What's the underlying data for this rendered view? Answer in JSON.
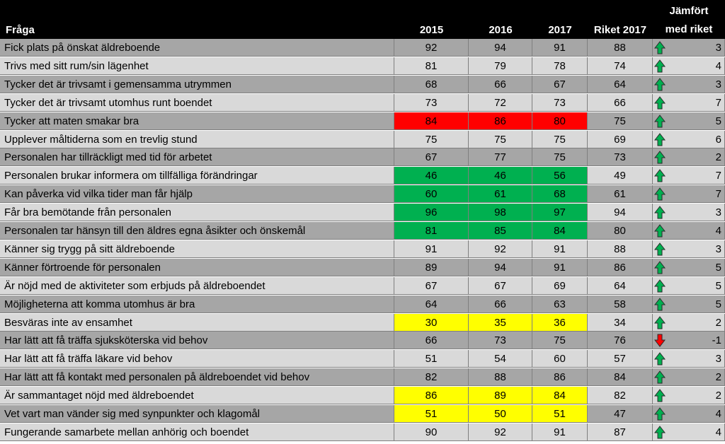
{
  "chart_data": {
    "type": "table",
    "headers": {
      "question": "Fråga",
      "y2015": "2015",
      "y2016": "2016",
      "y2017": "2017",
      "riket": "Riket 2017",
      "compare_line1": "Jämfört",
      "compare_line2": "med riket"
    },
    "colors": {
      "red": "#ff0000",
      "green": "#00b050",
      "yellow": "#ffff00",
      "row_light": "#d9d9d9",
      "row_dark": "#a6a6a6",
      "arrow_up": "#00b050",
      "arrow_down": "#ff0000"
    },
    "rows": [
      {
        "q": "Fick plats på önskat äldreboende",
        "v2015": "92",
        "v2016": "94",
        "v2017": "91",
        "riket": "88",
        "diff": "3",
        "dir": "up",
        "hl": ""
      },
      {
        "q": "Trivs med sitt rum/sin lägenhet",
        "v2015": "81",
        "v2016": "79",
        "v2017": "78",
        "riket": "74",
        "diff": "4",
        "dir": "up",
        "hl": ""
      },
      {
        "q": "Tycker det är trivsamt i gemensamma utrymmen",
        "v2015": "68",
        "v2016": "66",
        "v2017": "67",
        "riket": "64",
        "diff": "3",
        "dir": "up",
        "hl": ""
      },
      {
        "q": "Tycker det är trivsamt utomhus runt boendet",
        "v2015": "73",
        "v2016": "72",
        "v2017": "73",
        "riket": "66",
        "diff": "7",
        "dir": "up",
        "hl": ""
      },
      {
        "q": "Tycker att maten smakar bra",
        "v2015": "84",
        "v2016": "86",
        "v2017": "80",
        "riket": "75",
        "diff": "5",
        "dir": "up",
        "hl": "red"
      },
      {
        "q": "Upplever måltiderna som en trevlig stund",
        "v2015": "75",
        "v2016": "75",
        "v2017": "75",
        "riket": "69",
        "diff": "6",
        "dir": "up",
        "hl": ""
      },
      {
        "q": "Personalen har tillräckligt med tid för arbetet",
        "v2015": "67",
        "v2016": "77",
        "v2017": "75",
        "riket": "73",
        "diff": "2",
        "dir": "up",
        "hl": ""
      },
      {
        "q": "Personalen brukar informera om tillfälliga förändringar",
        "v2015": "46",
        "v2016": "46",
        "v2017": "56",
        "riket": "49",
        "diff": "7",
        "dir": "up",
        "hl": "green"
      },
      {
        "q": "Kan påverka vid vilka tider man får hjälp",
        "v2015": "60",
        "v2016": "61",
        "v2017": "68",
        "riket": "61",
        "diff": "7",
        "dir": "up",
        "hl": "green"
      },
      {
        "q": "Får bra bemötande från personalen",
        "v2015": "96",
        "v2016": "98",
        "v2017": "97",
        "riket": "94",
        "diff": "3",
        "dir": "up",
        "hl": "green"
      },
      {
        "q": "Personalen tar hänsyn till den äldres egna åsikter och önskemål",
        "v2015": "81",
        "v2016": "85",
        "v2017": "84",
        "riket": "80",
        "diff": "4",
        "dir": "up",
        "hl": "green"
      },
      {
        "q": "Känner sig trygg på sitt äldreboende",
        "v2015": "91",
        "v2016": "92",
        "v2017": "91",
        "riket": "88",
        "diff": "3",
        "dir": "up",
        "hl": ""
      },
      {
        "q": "Känner förtroende för personalen",
        "v2015": "89",
        "v2016": "94",
        "v2017": "91",
        "riket": "86",
        "diff": "5",
        "dir": "up",
        "hl": ""
      },
      {
        "q": "Är nöjd med de aktiviteter som erbjuds på äldreboendet",
        "v2015": "67",
        "v2016": "67",
        "v2017": "69",
        "riket": "64",
        "diff": "5",
        "dir": "up",
        "hl": ""
      },
      {
        "q": "Möjligheterna att komma utomhus är bra",
        "v2015": "64",
        "v2016": "66",
        "v2017": "63",
        "riket": "58",
        "diff": "5",
        "dir": "up",
        "hl": ""
      },
      {
        "q": "Besväras inte av ensamhet",
        "v2015": "30",
        "v2016": "35",
        "v2017": "36",
        "riket": "34",
        "diff": "2",
        "dir": "up",
        "hl": "yellow"
      },
      {
        "q": "Har lätt att få träffa sjuksköterska vid behov",
        "v2015": "66",
        "v2016": "73",
        "v2017": "75",
        "riket": "76",
        "diff": "-1",
        "dir": "down",
        "hl": ""
      },
      {
        "q": "Har lätt att få träffa läkare vid behov",
        "v2015": "51",
        "v2016": "54",
        "v2017": "60",
        "riket": "57",
        "diff": "3",
        "dir": "up",
        "hl": ""
      },
      {
        "q": "Har lätt att få kontakt med personalen på äldreboendet vid behov",
        "v2015": "82",
        "v2016": "88",
        "v2017": "86",
        "riket": "84",
        "diff": "2",
        "dir": "up",
        "hl": ""
      },
      {
        "q": "Är sammantaget nöjd med äldreboendet",
        "v2015": "86",
        "v2016": "89",
        "v2017": "84",
        "riket": "82",
        "diff": "2",
        "dir": "up",
        "hl": "yellow"
      },
      {
        "q": "Vet vart man vänder sig med synpunkter och klagomål",
        "v2015": "51",
        "v2016": "50",
        "v2017": "51",
        "riket": "47",
        "diff": "4",
        "dir": "up",
        "hl": "yellow"
      },
      {
        "q": "Fungerande samarbete mellan anhörig och boendet",
        "v2015": "90",
        "v2016": "92",
        "v2017": "91",
        "riket": "87",
        "diff": "4",
        "dir": "up",
        "hl": ""
      }
    ]
  }
}
